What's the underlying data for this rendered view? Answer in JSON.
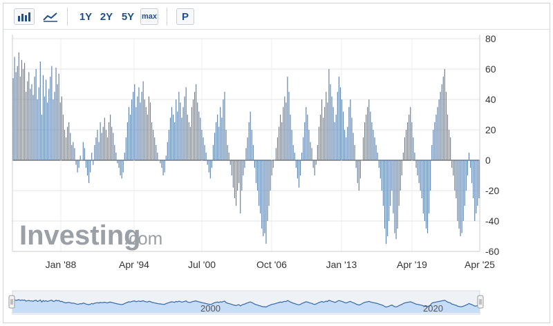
{
  "toolbar": {
    "buttons": [
      "1Y",
      "2Y",
      "5Y"
    ],
    "max_label": "max",
    "p_label": "P",
    "bar_chart_icon": "bar-chart-icon",
    "line_chart_icon": "line-chart-icon"
  },
  "watermark": {
    "brand": "Investing",
    "domain": ".com"
  },
  "colors": {
    "bars": "#5b7fa8",
    "navigator_line": "#3366aa",
    "navigator_fill": "#c7dcf7",
    "accent": "#1f4f8a"
  },
  "chart_data": {
    "type": "bar",
    "x_tick_labels": [
      "Jan '88",
      "Apr '94",
      "Jul '00",
      "Oct '06",
      "Jan '13",
      "Apr '19",
      "Apr '25"
    ],
    "x_range": [
      "1983-11",
      "2025-04"
    ],
    "ylim": [
      -60,
      80
    ],
    "y_ticks": [
      80,
      60,
      40,
      20,
      0,
      -20,
      -40,
      -60
    ],
    "y_axis_position": "right",
    "grid": true,
    "series": [
      {
        "values": [
          54,
          68,
          58,
          62,
          71,
          55,
          66,
          60,
          64,
          45,
          52,
          58,
          47,
          50,
          43,
          55,
          60,
          40,
          48,
          65,
          30,
          56,
          42,
          53,
          38,
          47,
          55,
          62,
          40,
          45,
          61,
          50,
          57,
          38,
          42,
          30,
          20,
          15,
          22,
          25,
          18,
          10,
          12,
          8,
          -3,
          -8,
          -5,
          3,
          0,
          12,
          8,
          -5,
          -10,
          -15,
          -8,
          5,
          -3,
          10,
          15,
          20,
          12,
          25,
          18,
          22,
          28,
          20,
          15,
          25,
          30,
          22,
          18,
          10,
          5,
          -2,
          -5,
          -10,
          -12,
          -8,
          5,
          15,
          25,
          35,
          30,
          40,
          45,
          50,
          35,
          42,
          48,
          38,
          45,
          52,
          40,
          35,
          30,
          42,
          38,
          25,
          20,
          15,
          10,
          5,
          0,
          -2,
          -5,
          -10,
          -8,
          3,
          12,
          20,
          28,
          35,
          30,
          25,
          40,
          32,
          45,
          38,
          28,
          35,
          42,
          48,
          30,
          25,
          22,
          35,
          40,
          45,
          50,
          38,
          32,
          28,
          20,
          15,
          10,
          5,
          -3,
          -8,
          -12,
          -5,
          10,
          18,
          25,
          30,
          22,
          35,
          28,
          40,
          45,
          20,
          10,
          5,
          -3,
          -10,
          -18,
          -25,
          -30,
          -20,
          -15,
          -35,
          -20,
          -10,
          -5,
          8,
          15,
          25,
          32,
          20,
          10,
          -5,
          -15,
          -20,
          -30,
          -35,
          -45,
          -50,
          -48,
          -55,
          -40,
          -30,
          -20,
          -10,
          -5,
          0,
          8,
          15,
          22,
          30,
          25,
          35,
          42,
          38,
          55,
          45,
          30,
          20,
          10,
          5,
          -5,
          -12,
          -18,
          -10,
          5,
          15,
          25,
          35,
          30,
          20,
          12,
          8,
          -5,
          -10,
          -3,
          10,
          22,
          30,
          40,
          28,
          35,
          45,
          38,
          60,
          50,
          42,
          35,
          25,
          30,
          45,
          55,
          48,
          40,
          32,
          20,
          15,
          22,
          35,
          40,
          28,
          18,
          10,
          -5,
          -15,
          -20,
          -12,
          0,
          15,
          25,
          30,
          35,
          40,
          32,
          25,
          20,
          15,
          10,
          5,
          -5,
          -12,
          -20,
          -30,
          -45,
          -55,
          -50,
          -40,
          -30,
          -20,
          -35,
          -48,
          -52,
          -45,
          -30,
          -20,
          -10,
          5,
          15,
          20,
          25,
          30,
          35,
          25,
          15,
          5,
          -5,
          -10,
          -15,
          -20,
          -25,
          -35,
          -40,
          -45,
          -48,
          -35,
          -20,
          10,
          20,
          25,
          30,
          35,
          40,
          45,
          50,
          55,
          60,
          45,
          30,
          20,
          15,
          -5,
          -10,
          -20,
          -25,
          -40,
          -45,
          -50,
          -48,
          -40,
          -30,
          -20,
          -10,
          5,
          -5,
          -15,
          -25,
          -40,
          -35,
          -30,
          -25
        ]
      }
    ]
  },
  "navigator": {
    "year_labels": [
      "2000",
      "2020"
    ]
  }
}
